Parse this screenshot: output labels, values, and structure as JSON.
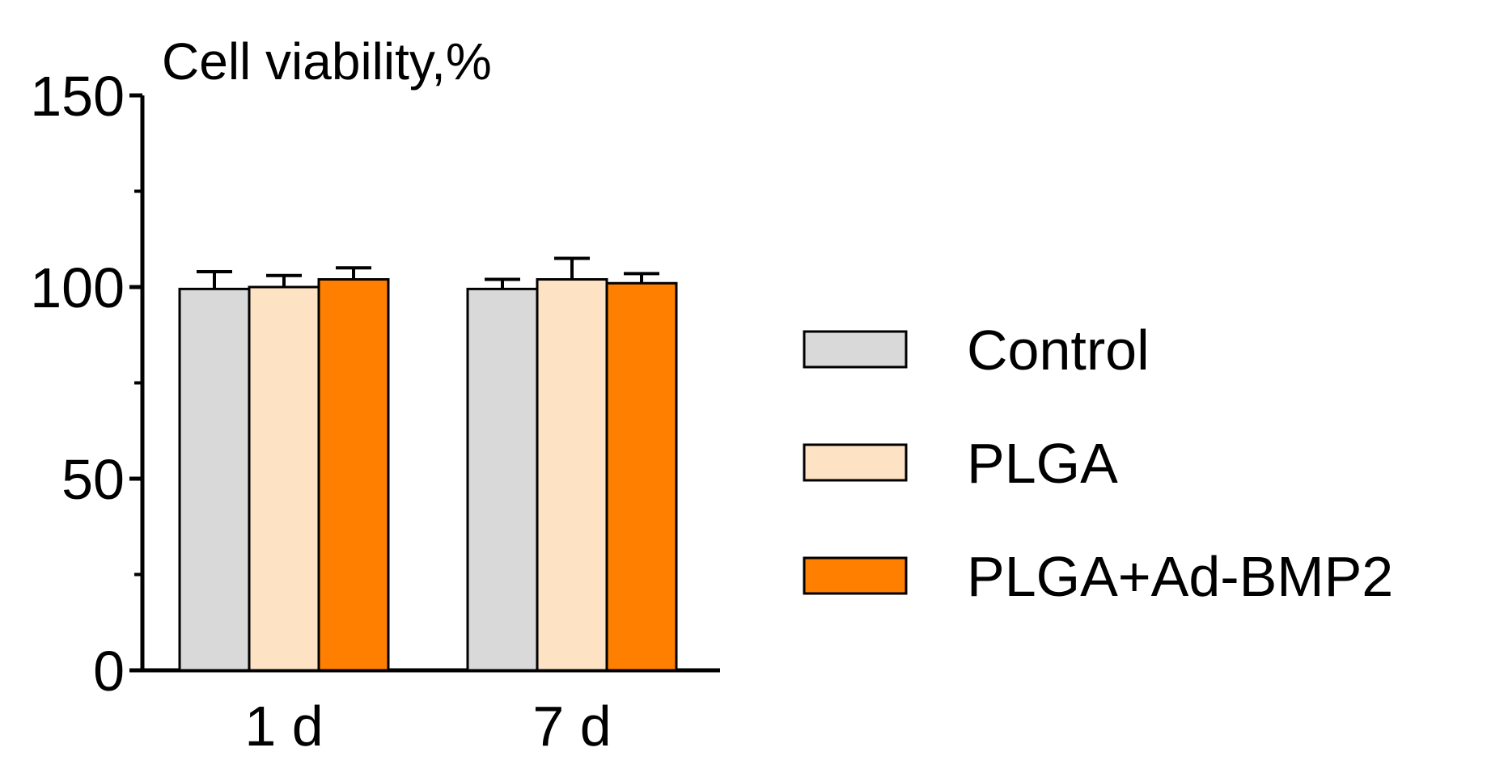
{
  "chart_data": {
    "type": "bar",
    "ylabel": "Cell viability,%",
    "xlabel": "",
    "categories": [
      "1 d",
      "7 d"
    ],
    "ylim": [
      0,
      150
    ],
    "yticks": [
      0,
      50,
      100,
      150
    ],
    "yticks_minor": [
      25,
      75,
      125
    ],
    "grid": false,
    "legend_position": "right",
    "series": [
      {
        "name": "Control",
        "values": [
          99.5,
          99.5
        ],
        "errors": [
          4.5,
          2.5
        ],
        "color": "#d9d9d9"
      },
      {
        "name": "PLGA",
        "values": [
          100,
          102
        ],
        "errors": [
          3,
          5.5
        ],
        "color": "#fde3c4"
      },
      {
        "name": "PLGA+Ad-BMP2",
        "values": [
          102,
          101
        ],
        "errors": [
          3,
          2.5
        ],
        "color": "#ff7f00"
      }
    ]
  }
}
